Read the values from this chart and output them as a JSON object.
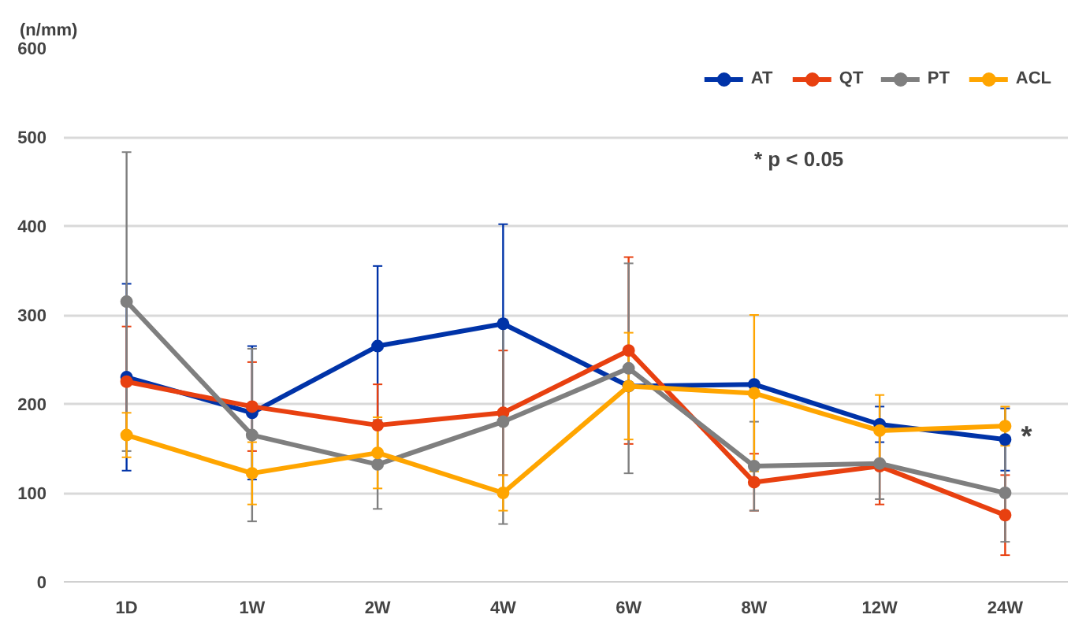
{
  "chart_data": {
    "type": "line",
    "ylabel": "(n/mm)",
    "categories": [
      "1D",
      "1W",
      "2W",
      "4W",
      "6W",
      "8W",
      "12W",
      "24W"
    ],
    "series": [
      {
        "name": "AT",
        "color": "#0033a8",
        "values": [
          230,
          190,
          265,
          290,
          220,
          222,
          177,
          160
        ],
        "errors": [
          105,
          75,
          90,
          112,
          null,
          null,
          20,
          35
        ]
      },
      {
        "name": "QT",
        "color": "#e84010",
        "values": [
          225,
          197,
          176,
          190,
          260,
          112,
          130,
          75
        ],
        "errors": [
          62,
          50,
          46,
          70,
          105,
          32,
          43,
          45
        ]
      },
      {
        "name": "PT",
        "color": "#7f7f7f",
        "values": [
          315,
          165,
          132,
          180,
          240,
          130,
          133,
          100
        ],
        "errors": [
          168,
          97,
          50,
          115,
          118,
          50,
          40,
          55
        ]
      },
      {
        "name": "ACL",
        "color": "#ffa500",
        "values": [
          165,
          122,
          145,
          100,
          220,
          212,
          170,
          175
        ],
        "errors": [
          25,
          35,
          40,
          20,
          60,
          88,
          40,
          22
        ]
      }
    ],
    "ylim": [
      0,
      600
    ],
    "yticks": [
      0,
      100,
      200,
      300,
      400,
      500,
      600
    ],
    "grid": "y",
    "legend": "top right",
    "marker": "circle",
    "line_style": "solid",
    "annotations": [
      "* p < 0.05",
      {
        "text": "*",
        "x": "24W",
        "y": 160
      }
    ]
  }
}
